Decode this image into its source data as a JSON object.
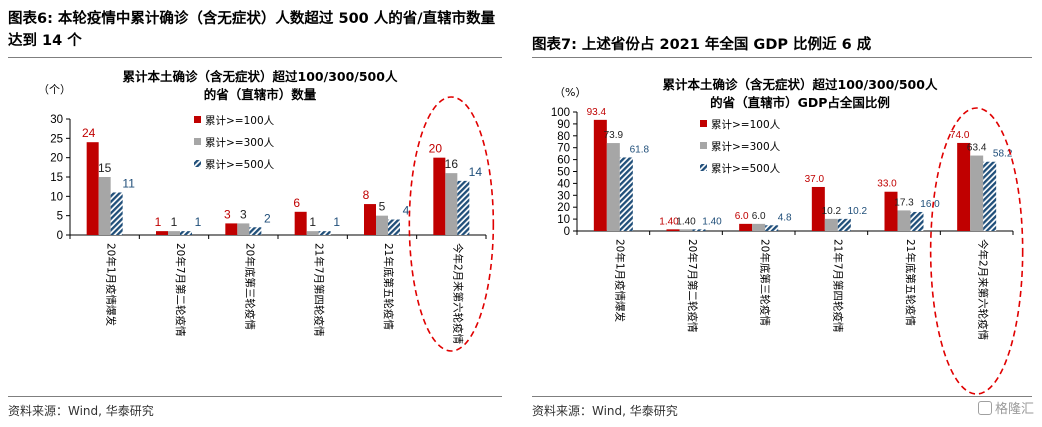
{
  "figures": [
    {
      "caption": "图表6:  本轮疫情中累计确诊（含无症状）人数超过 500 人的省/直辖市数量达到 14 个",
      "source": "资料来源：Wind, 华泰研究"
    },
    {
      "caption": "图表7:  上述省份占 2021 年全国 GDP 比例近 6 成",
      "source": "资料来源：Wind, 华泰研究"
    }
  ],
  "watermark": "格隆汇",
  "colors": {
    "series1": "#c00000",
    "series2": "#a6a6a6",
    "series3": "#1f4e79",
    "label1": "#c00000",
    "label3": "#1f4e79",
    "highlight": "#e00000"
  },
  "chart_data": [
    {
      "type": "bar",
      "title": [
        "累计本土确诊（含无症状）超过100/300/500人",
        "的省（直辖市）数量"
      ],
      "ylabel": "（个）",
      "ylim": [
        0,
        30
      ],
      "yticks": [
        0,
        5,
        10,
        15,
        20,
        25,
        30
      ],
      "categories": [
        "20年1月疫情爆发",
        "20年7月第二轮疫情",
        "20年底第三轮疫情",
        "21年7月第四轮疫情",
        "21年底第五轮疫情",
        "今年2月来第六轮疫情"
      ],
      "series": [
        {
          "name": "累计>=100人",
          "values": [
            24,
            1,
            3,
            6,
            8,
            20
          ],
          "labels": [
            "24",
            "1",
            "3",
            "6",
            "8",
            "20"
          ]
        },
        {
          "name": "累计>=300人",
          "values": [
            15,
            1,
            3,
            1,
            5,
            16
          ],
          "labels": [
            "15",
            "1",
            "3",
            "1",
            "5",
            "16"
          ]
        },
        {
          "name": "累计>=500人",
          "values": [
            11,
            1,
            2,
            1,
            4,
            14
          ],
          "labels": [
            "11",
            "1",
            "2",
            "1",
            "4",
            "14"
          ]
        }
      ],
      "legend": "top-center",
      "highlight": "last-category",
      "grid": false
    },
    {
      "type": "bar",
      "title": [
        "累计本土确诊（含无症状）超过100/300/500人",
        "的省（直辖市）GDP占全国比例"
      ],
      "ylabel": "（%）",
      "ylim": [
        0,
        100
      ],
      "yticks": [
        0,
        10,
        20,
        30,
        40,
        50,
        60,
        70,
        80,
        90,
        100
      ],
      "categories": [
        "20年1月疫情爆发",
        "20年7月第二轮疫情",
        "20年底第三轮疫情",
        "21年7月第四轮疫情",
        "21年底第五轮疫情",
        "今年2月来第六轮疫情"
      ],
      "series": [
        {
          "name": "累计>=100人",
          "values": [
            93.4,
            1.4,
            6.0,
            37.0,
            33.0,
            74.0
          ],
          "labels": [
            "93.4",
            "1.40",
            "6.0",
            "37.0",
            "33.0",
            "74.0"
          ]
        },
        {
          "name": "累计>=300人",
          "values": [
            73.9,
            1.4,
            6.0,
            10.2,
            17.3,
            63.4
          ],
          "labels": [
            "73.9",
            "1.40",
            "6.0",
            "10.2",
            "17.3",
            "63.4"
          ]
        },
        {
          "name": "累计>=500人",
          "values": [
            61.8,
            1.4,
            4.8,
            10.2,
            16.0,
            58.2
          ],
          "labels": [
            "61.8",
            "1.40",
            "4.8",
            "10.2",
            "16.0",
            "58.2"
          ]
        }
      ],
      "legend": "top-center",
      "highlight": "last-category",
      "grid": false
    }
  ]
}
